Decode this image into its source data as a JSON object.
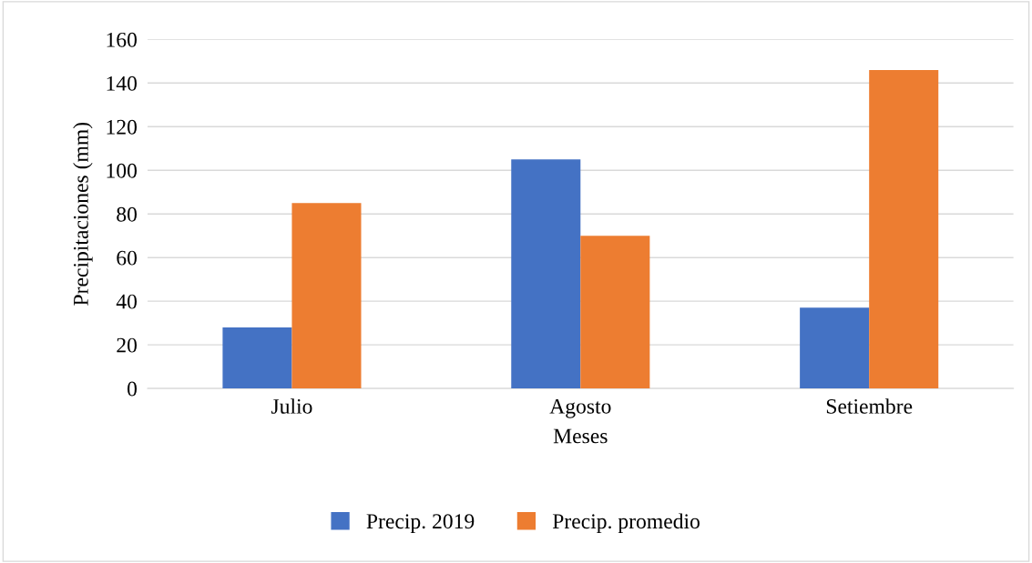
{
  "chart_data": {
    "type": "bar",
    "xlabel": "Meses",
    "ylabel": "Precipitaciones (mm)",
    "categories": [
      "Julio",
      "Agosto",
      "Setiembre"
    ],
    "series": [
      {
        "name": "Precip. 2019",
        "color": "#4472c4",
        "values": [
          28,
          105,
          37
        ]
      },
      {
        "name": "Precip. promedio",
        "color": "#ed7d31",
        "values": [
          85,
          70,
          146
        ]
      }
    ],
    "ylim": [
      0,
      160
    ],
    "yticks": [
      0,
      20,
      40,
      60,
      80,
      100,
      120,
      140,
      160
    ],
    "grid": "y",
    "legend": "bottom"
  }
}
